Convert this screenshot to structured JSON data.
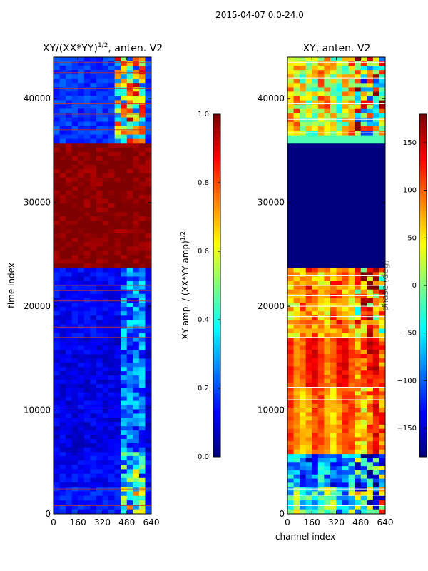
{
  "figure": {
    "suptitle": "2015-04-07 0.0-24.0"
  },
  "colors": {
    "jet": [
      "#00007f",
      "#0000ff",
      "#007fff",
      "#00ffff",
      "#7fff7f",
      "#ffff00",
      "#ff7f00",
      "#ff0000",
      "#7f0000"
    ],
    "axis": "#000000",
    "background": "#ffffff"
  },
  "chart_data": [
    {
      "type": "heatmap",
      "name": "amplitude-ratio",
      "title": "XY/(XX*YY)",
      "title_superscript": "1/2",
      "title_suffix": ", anten. V2",
      "xlabel": "",
      "ylabel": "time index",
      "xlim": [
        0,
        640
      ],
      "ylim": [
        0,
        44000
      ],
      "xticks": [
        0,
        160,
        320,
        480,
        640
      ],
      "yticks": [
        0,
        10000,
        20000,
        30000,
        40000
      ],
      "bands": [
        {
          "y0": 0,
          "y1": 2600,
          "base": 0.15,
          "noise": 0.28,
          "stripe_x": [
            420,
            600
          ]
        },
        {
          "y0": 2600,
          "y1": 6000,
          "base": 0.12,
          "noise": 0.25,
          "stripe_x": [
            420,
            600
          ]
        },
        {
          "y0": 6000,
          "y1": 17000,
          "base": 0.1,
          "noise": 0.12,
          "stripe_x": [
            420,
            600
          ]
        },
        {
          "y0": 17000,
          "y1": 23700,
          "base": 0.12,
          "noise": 0.12,
          "stripe_x": [
            420,
            600
          ]
        },
        {
          "y0": 23700,
          "y1": 35700,
          "base": 1.0,
          "noise": 0.0,
          "stripe_x": []
        },
        {
          "y0": 35700,
          "y1": 44000,
          "base": 0.18,
          "noise": 0.35,
          "stripe_x": [
            400,
            600
          ]
        }
      ],
      "horizontal_lines": [
        800,
        2400,
        10000,
        17000,
        18000,
        20500,
        21500,
        22000,
        37000,
        38500,
        39500,
        41000,
        42500,
        43500
      ],
      "colorbar": {
        "label": "XY amp. / (XX*YY amp)",
        "label_superscript": "1/2",
        "range": [
          0.0,
          1.0
        ],
        "ticks": [
          "0.0",
          "0.2",
          "0.4",
          "0.6",
          "0.8",
          "1.0"
        ],
        "tick_values": [
          0.0,
          0.2,
          0.4,
          0.6,
          0.8,
          1.0
        ]
      }
    },
    {
      "type": "heatmap",
      "name": "phase",
      "title": "XY, anten. V2",
      "xlabel": "channel index",
      "ylabel": "",
      "xlim": [
        0,
        640
      ],
      "ylim": [
        0,
        44000
      ],
      "xticks": [
        0,
        160,
        320,
        480,
        640
      ],
      "yticks": [
        0,
        10000,
        20000,
        30000,
        40000
      ],
      "bands": [
        {
          "y0": 0,
          "y1": 2600,
          "base": 0.4,
          "noise": 0.45
        },
        {
          "y0": 2600,
          "y1": 5800,
          "base": 0.25,
          "noise": 0.35
        },
        {
          "y0": 5800,
          "y1": 12200,
          "base": 0.74,
          "noise": 0.12
        },
        {
          "y0": 12200,
          "y1": 17000,
          "base": 0.82,
          "noise": 0.1
        },
        {
          "y0": 17000,
          "y1": 23700,
          "base": 0.72,
          "noise": 0.3
        },
        {
          "y0": 23700,
          "y1": 35700,
          "base": 0.0,
          "noise": 0.0
        },
        {
          "y0": 35700,
          "y1": 36500,
          "base": 0.45,
          "noise": 0.0
        },
        {
          "y0": 36500,
          "y1": 44000,
          "base": 0.6,
          "noise": 0.45
        }
      ],
      "horizontal_lines": [
        800,
        1800,
        2400,
        10000,
        11000,
        12200,
        17000,
        18200,
        19000,
        20000,
        21000,
        22000,
        23000,
        36700,
        38000,
        39500,
        42000,
        43500
      ],
      "colorbar": {
        "label": "phase (deg)",
        "range": [
          -180,
          180
        ],
        "ticks": [
          "−150",
          "−100",
          "−50",
          "0",
          "50",
          "100",
          "150"
        ],
        "tick_values": [
          -150,
          -100,
          -50,
          0,
          50,
          100,
          150
        ]
      }
    }
  ]
}
